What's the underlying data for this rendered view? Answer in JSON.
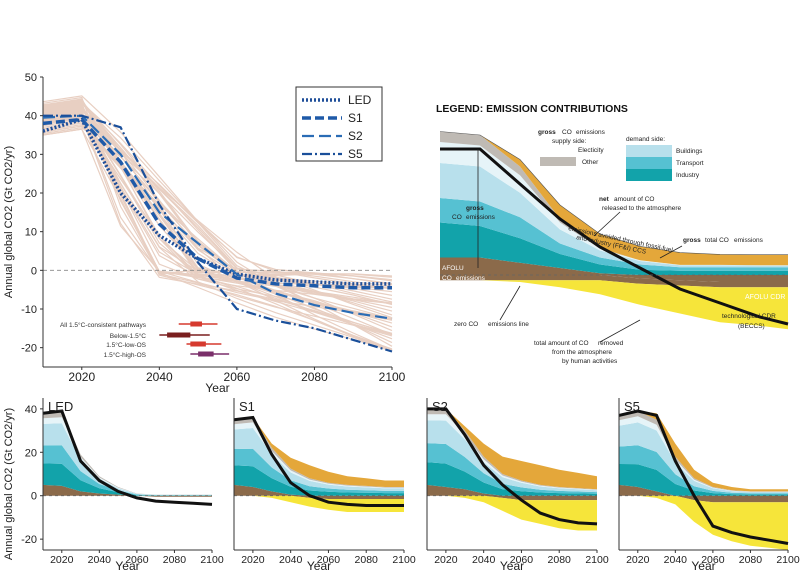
{
  "colors": {
    "LED": "#1f4e99",
    "S1": "#1f5aa8",
    "S2": "#2a6cb5",
    "S5": "#1a4f9a",
    "spaghetti": "#e8cfc2",
    "net": "#111111",
    "afolu": "#8b6a4a",
    "other": "#bfbab4",
    "electricity": "#e6f4f8",
    "buildings": "#b8e0ec",
    "transport": "#56c1d2",
    "industry": "#12a3aa",
    "ccs": "#e4a73a",
    "beccs": "#f6e53a",
    "range_dark": "#7a1f1f",
    "range_red": "#d63a2e",
    "range_purple": "#7a2f6a"
  },
  "chart_data": [
    {
      "type": "line",
      "title": "",
      "xlabel": "Year",
      "ylabel": "Annual global CO2 (Gt CO2/yr)",
      "xlim": [
        2010,
        2100
      ],
      "ylim": [
        -25,
        50
      ],
      "xticks": [
        2020,
        2040,
        2060,
        2080,
        2100
      ],
      "yticks": [
        -20,
        -10,
        0,
        10,
        20,
        30,
        40,
        50
      ],
      "x": [
        2010,
        2020,
        2030,
        2040,
        2050,
        2060,
        2070,
        2080,
        2090,
        2100
      ],
      "series": [
        {
          "name": "LED",
          "values": [
            36,
            39,
            20,
            9,
            3,
            -1,
            -2.5,
            -3,
            -3.5,
            -3.5
          ]
        },
        {
          "name": "S1",
          "values": [
            38,
            39,
            28,
            12,
            3,
            -2,
            -3.5,
            -4,
            -4.5,
            -4.5
          ]
        },
        {
          "name": "S2",
          "values": [
            39.5,
            40,
            30,
            15,
            7,
            -1,
            -6,
            -9,
            -11,
            -12.5
          ]
        },
        {
          "name": "S5",
          "values": [
            40,
            40,
            37,
            17,
            2,
            -10,
            -13,
            -15,
            -18,
            -21
          ]
        }
      ],
      "legend": [
        "LED",
        "S1",
        "S2",
        "S5"
      ],
      "legend_position": "top-right",
      "range_labels": [
        "All 1.5°C-consistent pathways",
        "Below-1.5°C",
        "1.5°C-low-OS",
        "1.5°C-high-OS"
      ]
    },
    {
      "type": "area",
      "title": "LEGEND: EMISSION CONTRIBUTIONS",
      "labels": {
        "gross_supply_a": "gross",
        "gross_supply_b": "CO",
        "gross_supply_c": "emissions",
        "gross_supply_d": "supply side:",
        "electicity": "Electicity",
        "other": "Other",
        "demand_side": "demand side:",
        "buildings": "Buildings",
        "transport": "Transport",
        "industry": "Industry",
        "net_a": "net",
        "net_b": "amount of CO",
        "net_c": "released to the atmosphere",
        "avoided_a": "emissions avoided through fossil-fuel",
        "avoided_b": "and industry (FF&I) CCS",
        "gross_total_a": "gross",
        "gross_total_b": "total CO",
        "gross_total_c": "emissions",
        "gross_left_a": "gross",
        "gross_left_b": "CO",
        "gross_left_c": "emissions",
        "afolu_a": "AFOLU",
        "afolu_b": "CO",
        "afolu_c": "emissions",
        "afolu_cdr": "AFOLU CDR",
        "tech_cdr_a": "technological CDR",
        "tech_cdr_b": "(BECCS)",
        "zero_line": "zero CO",
        "zero_line_b": "emissions line",
        "removed_a": "total amount of CO",
        "removed_b": "removed",
        "removed_c": "from the atmosphere",
        "removed_d": "by human activities"
      }
    },
    {
      "type": "area",
      "title": "LED",
      "xlabel": "Year",
      "ylabel": "Annual global CO2 (Gt CO2/yr)",
      "xlim": [
        2010,
        2100
      ],
      "ylim": [
        -25,
        45
      ],
      "xticks": [
        2020,
        2040,
        2060,
        2080,
        2100
      ],
      "yticks": [
        -20,
        0,
        20,
        40
      ],
      "x": [
        2010,
        2020,
        2030,
        2040,
        2050,
        2060,
        2070,
        2080,
        2090,
        2100
      ],
      "afolu": [
        5,
        4.5,
        2,
        1,
        0.5,
        0,
        -0.5,
        -0.5,
        -0.5,
        -0.5
      ],
      "ffi_gross": [
        33,
        34,
        17,
        8,
        3.5,
        1,
        0.5,
        0.5,
        0.5,
        0.5
      ],
      "ccs": [
        0,
        0,
        0,
        0,
        0,
        0,
        0,
        0,
        0,
        0
      ],
      "beccs": [
        0,
        0,
        0,
        0,
        0,
        0,
        0,
        0,
        0,
        0
      ],
      "net": [
        38,
        39,
        16,
        7,
        2,
        -1,
        -2.5,
        -3,
        -3.5,
        -4
      ]
    },
    {
      "type": "area",
      "title": "S1",
      "xlabel": "Year",
      "xlim": [
        2010,
        2100
      ],
      "ylim": [
        -25,
        45
      ],
      "xticks": [
        2020,
        2040,
        2060,
        2080,
        2100
      ],
      "x": [
        2010,
        2020,
        2030,
        2040,
        2050,
        2060,
        2070,
        2080,
        2090,
        2100
      ],
      "afolu": [
        5,
        4,
        2,
        0.5,
        -1,
        -1.5,
        -1.5,
        -1.5,
        -1.5,
        -1.5
      ],
      "ffi_gross": [
        30,
        32,
        20,
        12,
        8,
        6,
        5,
        4.5,
        4,
        4
      ],
      "ccs": [
        0,
        0,
        2,
        5,
        6,
        5,
        4,
        3.5,
        3,
        3
      ],
      "beccs": [
        0,
        0,
        -1,
        -3,
        -4,
        -5,
        -6,
        -6,
        -6,
        -6
      ],
      "net": [
        35,
        36,
        19,
        6,
        0,
        -3,
        -4,
        -4.5,
        -4.5,
        -4.5
      ]
    },
    {
      "type": "area",
      "title": "S2",
      "xlabel": "Year",
      "xlim": [
        2010,
        2100
      ],
      "ylim": [
        -25,
        45
      ],
      "xticks": [
        2020,
        2040,
        2060,
        2080,
        2100
      ],
      "x": [
        2010,
        2020,
        2030,
        2040,
        2050,
        2060,
        2070,
        2080,
        2090,
        2100
      ],
      "afolu": [
        5,
        4,
        3,
        1,
        -1,
        -2,
        -2,
        -2,
        -2,
        -2
      ],
      "ffi_gross": [
        35,
        36,
        27,
        17,
        10,
        7,
        5,
        4,
        3.5,
        3
      ],
      "ccs": [
        0,
        0,
        2,
        6,
        8,
        9,
        9,
        8,
        7,
        6
      ],
      "beccs": [
        0,
        0,
        -1,
        -3,
        -6,
        -9,
        -11,
        -13,
        -14,
        -14
      ],
      "net": [
        40,
        40,
        28,
        14,
        5,
        -2,
        -8,
        -11,
        -12.5,
        -13
      ]
    },
    {
      "type": "area",
      "title": "S5",
      "xlabel": "Year",
      "xlim": [
        2010,
        2100
      ],
      "ylim": [
        -25,
        45
      ],
      "xticks": [
        2020,
        2040,
        2060,
        2080,
        2100
      ],
      "x": [
        2010,
        2020,
        2030,
        2040,
        2050,
        2060,
        2070,
        2080,
        2090,
        2100
      ],
      "afolu": [
        5,
        4,
        2,
        0,
        -2,
        -3,
        -3,
        -3,
        -3,
        -3
      ],
      "ffi_gross": [
        32,
        35,
        33,
        18,
        8,
        4,
        2.5,
        2,
        2,
        2
      ],
      "ccs": [
        0,
        0,
        3,
        6,
        4,
        2,
        1.5,
        1,
        1,
        1
      ],
      "beccs": [
        0,
        0,
        -1,
        -4,
        -10,
        -15,
        -18,
        -20,
        -21,
        -22
      ],
      "net": [
        37,
        39,
        37,
        16,
        0,
        -14,
        -17,
        -19,
        -20.5,
        -22
      ]
    }
  ]
}
